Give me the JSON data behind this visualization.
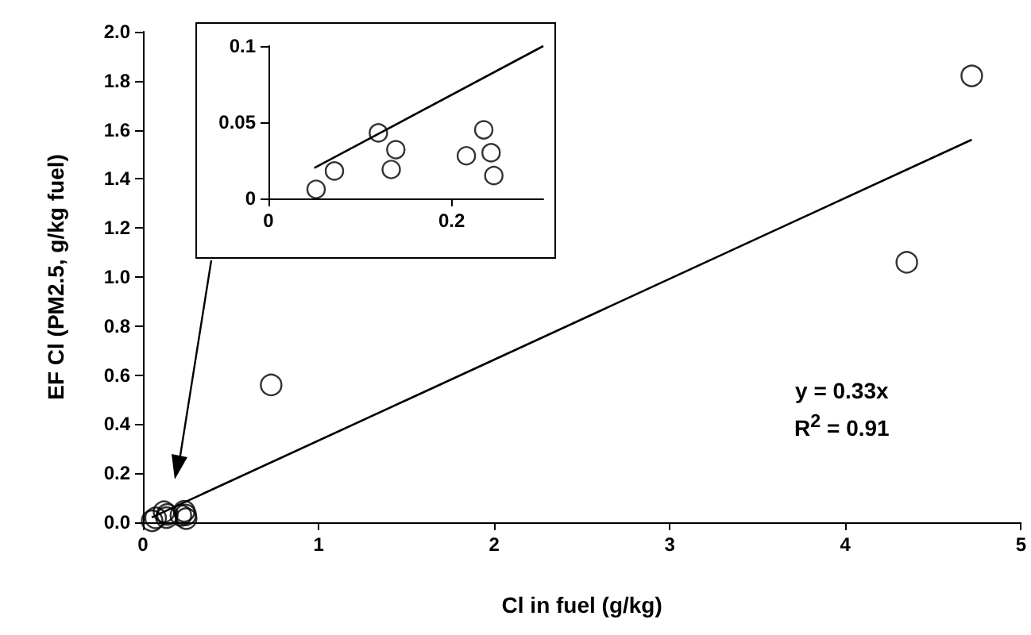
{
  "chart_data": [
    {
      "type": "scatter",
      "xlabel": "Cl in fuel (g/kg)",
      "ylabel": "EF Cl (PM2.5, g/kg fuel)",
      "xlim": [
        0,
        5
      ],
      "xticks": [
        0,
        1,
        2,
        3,
        4,
        5
      ],
      "ylim": [
        0,
        2
      ],
      "yticks": [
        {
          "value": 0,
          "label": "0.0"
        },
        0.2,
        0.4,
        0.6,
        0.8,
        {
          "value": 1,
          "label": "1.0"
        },
        1.2,
        1.4,
        1.6,
        1.8,
        {
          "value": 2,
          "label": "2.0"
        }
      ],
      "grid": false,
      "annotations": [
        "y = 0.33x",
        "R$^{2}$ = 0.91"
      ],
      "series": [
        {
          "marker": "circle",
          "color": "#000000",
          "x": [
            0.052,
            0.072,
            0.12,
            0.134,
            0.139,
            0.216,
            0.235,
            0.243,
            0.246,
            0.73,
            4.35,
            4.72
          ],
          "values": [
            0.006,
            0.018,
            0.043,
            0.019,
            0.032,
            0.028,
            0.045,
            0.03,
            0.015,
            0.56,
            1.06,
            1.82
          ]
        },
        {
          "type": "line",
          "marker": "none",
          "color": "#000000",
          "x": [
            0.05,
            4.72
          ],
          "values": [
            0.02,
            1.56
          ]
        }
      ]
    },
    {
      "type": "scatter",
      "xlim": [
        0,
        0.3
      ],
      "xticks": [
        0,
        0.2
      ],
      "ylim": [
        0,
        0.1
      ],
      "yticks": [
        0,
        0.05,
        0.1
      ],
      "grid": false,
      "series": [
        {
          "marker": "circle",
          "color": "#000000",
          "x": [
            0.052,
            0.072,
            0.12,
            0.134,
            0.139,
            0.216,
            0.235,
            0.243,
            0.246
          ],
          "values": [
            0.006,
            0.018,
            0.043,
            0.019,
            0.032,
            0.028,
            0.045,
            0.03,
            0.015
          ]
        },
        {
          "type": "line",
          "marker": "none",
          "color": "#000000",
          "x": [
            0.05,
            0.3
          ],
          "values": [
            0.02,
            0.1
          ]
        }
      ]
    }
  ]
}
